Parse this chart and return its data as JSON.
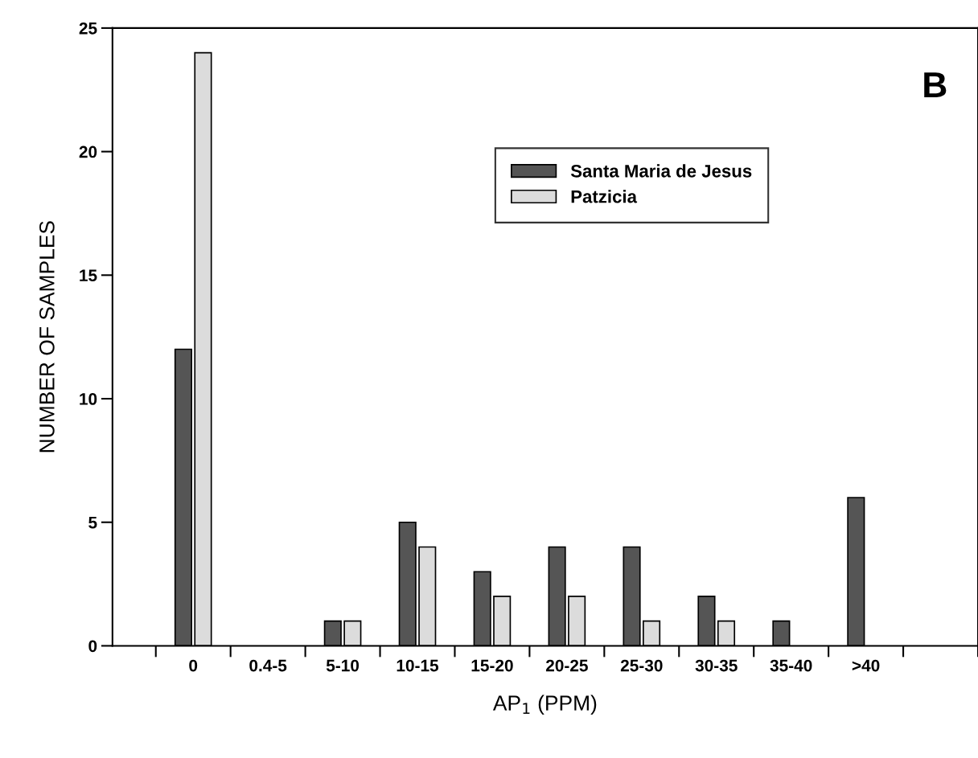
{
  "chart_data": {
    "type": "bar",
    "title": "B",
    "xlabel": "AP$_{1}$ (PPM)",
    "ylabel": "NUMBER OF SAMPLES",
    "categories": [
      "0",
      "0.4-5",
      "5-10",
      "10-15",
      "15-20",
      "20-25",
      "25-30",
      "30-35",
      "35-40",
      ">40"
    ],
    "series": [
      {
        "name": "Santa Maria de Jesus",
        "color": "#555555",
        "values": [
          12,
          0,
          1,
          5,
          3,
          4,
          4,
          2,
          1,
          6
        ]
      },
      {
        "name": "Patzicia",
        "color": "#dcdcdc",
        "values": [
          24,
          0,
          1,
          4,
          2,
          2,
          1,
          1,
          0,
          0
        ]
      }
    ],
    "ylim": [
      0,
      25
    ],
    "yticks": [
      0,
      5,
      10,
      15,
      20,
      25
    ],
    "grid": false,
    "legend": "top"
  }
}
